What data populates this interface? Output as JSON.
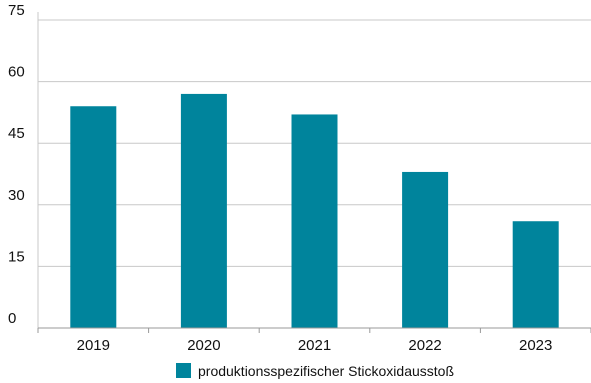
{
  "chart_data": {
    "type": "bar",
    "categories": [
      "2019",
      "2020",
      "2021",
      "2022",
      "2023"
    ],
    "series": [
      {
        "name": "produktionsspezifischer Stickoxidausstoß",
        "values": [
          54,
          57,
          52,
          38,
          26
        ],
        "color": "#00849c"
      }
    ],
    "ylim": [
      0,
      75
    ],
    "yticks": [
      "0",
      "15",
      "30",
      "45",
      "60",
      "75"
    ],
    "grid": true,
    "legend": "bottom-center"
  }
}
